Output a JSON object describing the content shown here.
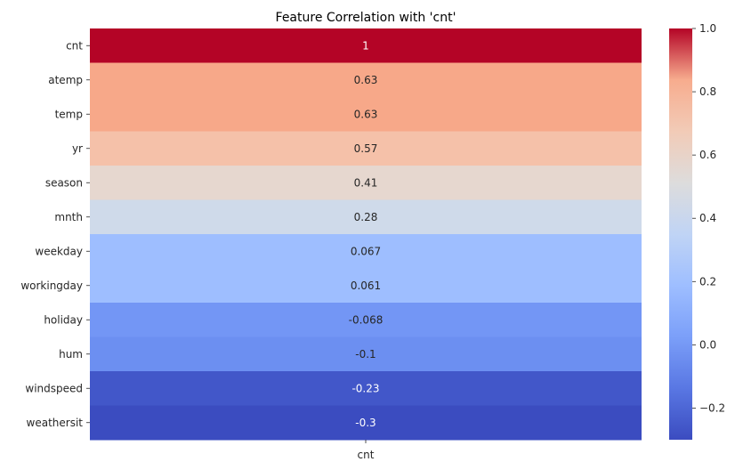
{
  "chart_data": {
    "type": "heatmap",
    "title": "Feature Correlation with 'cnt'",
    "columns": [
      "cnt"
    ],
    "rows": [
      "cnt",
      "atemp",
      "temp",
      "yr",
      "season",
      "mnth",
      "weekday",
      "workingday",
      "holiday",
      "hum",
      "windspeed",
      "weathersit"
    ],
    "values": [
      1,
      0.63,
      0.63,
      0.57,
      0.41,
      0.28,
      0.067,
      0.061,
      -0.068,
      -0.1,
      -0.23,
      -0.3
    ],
    "annotations": [
      "1",
      "0.63",
      "0.63",
      "0.57",
      "0.41",
      "0.28",
      "0.067",
      "0.061",
      "-0.068",
      "-0.1",
      "-0.23",
      "-0.3"
    ],
    "colormap": "coolwarm",
    "vmin": -0.3,
    "vmax": 1.0,
    "colorbar_ticks": [
      {
        "value": 1.0,
        "label": "1.0"
      },
      {
        "value": 0.8,
        "label": "0.8"
      },
      {
        "value": 0.6,
        "label": "0.6"
      },
      {
        "value": 0.4,
        "label": "0.4"
      },
      {
        "value": 0.2,
        "label": "0.2"
      },
      {
        "value": 0.0,
        "label": "0.0"
      },
      {
        "value": -0.2,
        "label": "−0.2"
      }
    ],
    "cell_colors": [
      "#b40426",
      "#f7a889",
      "#f7a889",
      "#f5c1a9",
      "#e6d7cf",
      "#cfdaea",
      "#9ebeff",
      "#9ebeff",
      "#7396f5",
      "#6c8ff1",
      "#4257c9",
      "#3b4cc0"
    ]
  }
}
